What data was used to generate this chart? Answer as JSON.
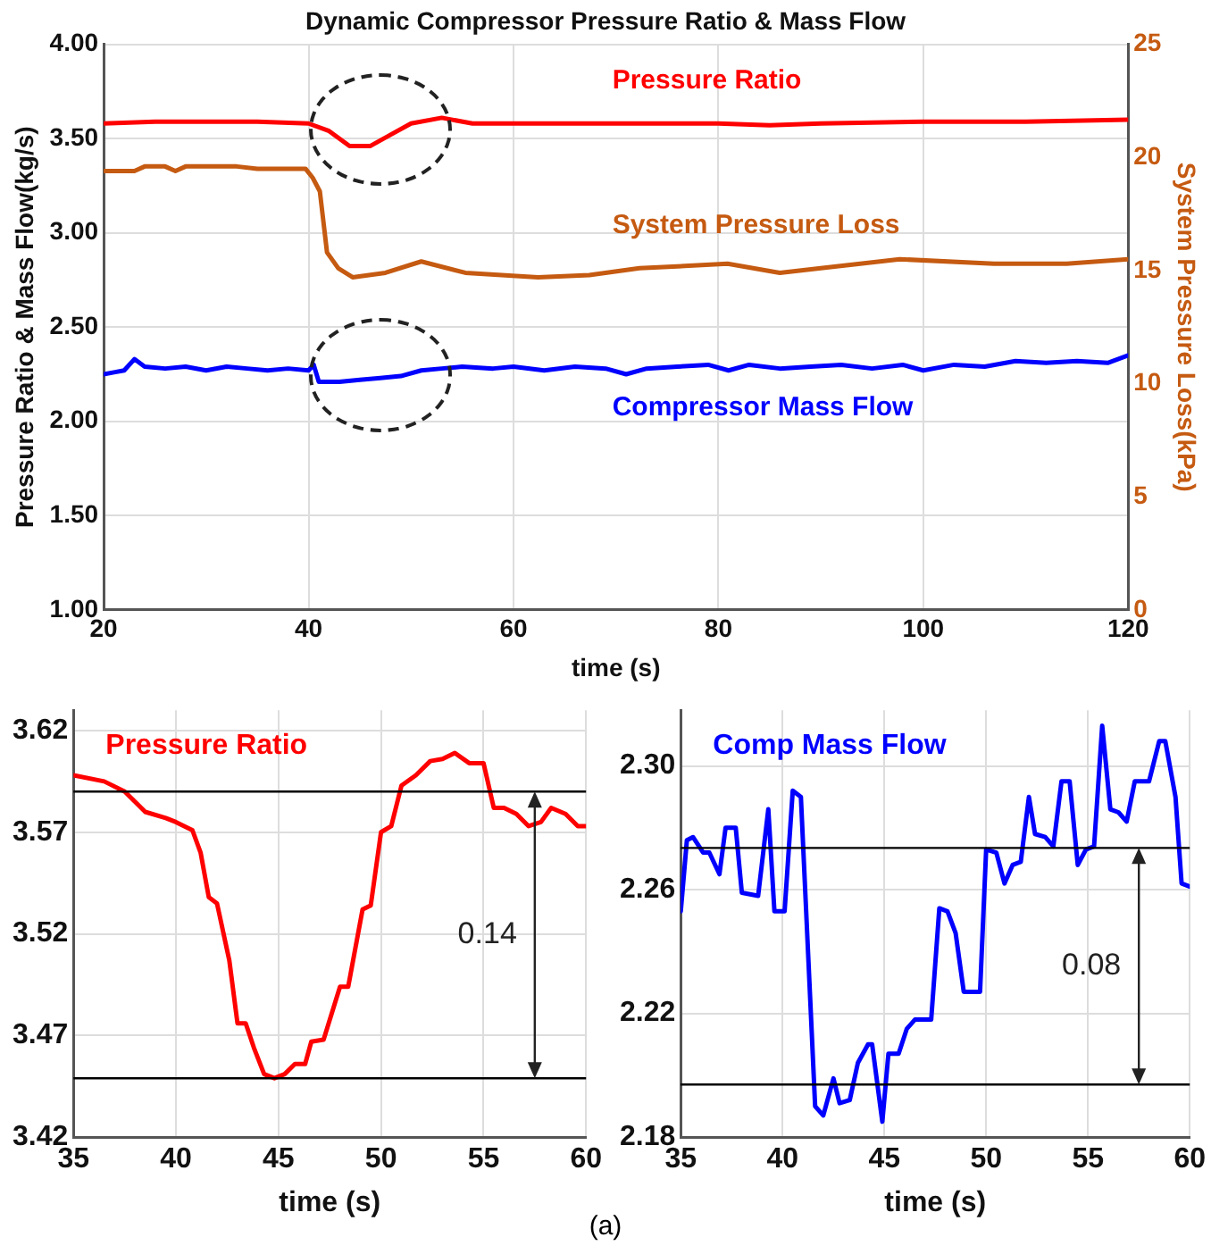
{
  "chart_data": [
    {
      "type": "line",
      "title": "Dynamic Compressor Pressure Ratio & Mass Flow",
      "xlabel": "time (s)",
      "ylabel": "Pressure Ratio & Mass Flow(kg/s)",
      "y2label": "System Pressure Loss(kPa)",
      "xlim": [
        20,
        120
      ],
      "xticks": [
        20,
        40,
        60,
        80,
        100,
        120
      ],
      "ylim": [
        1,
        4
      ],
      "yticks": [
        {
          "value": 1,
          "label": "1.00"
        },
        {
          "value": 1.5,
          "label": "1.50"
        },
        {
          "value": 2,
          "label": "2.00"
        },
        {
          "value": 2.5,
          "label": "2.50"
        },
        {
          "value": 3,
          "label": "3.00"
        },
        {
          "value": 3.5,
          "label": "3.50"
        },
        {
          "value": 4,
          "label": "4.00"
        }
      ],
      "y2lim": [
        0,
        25
      ],
      "y2ticks": [
        0,
        5,
        10,
        15,
        20,
        25
      ],
      "grid": true,
      "legend": false,
      "marker": "none",
      "line_style": "solid",
      "annotations": [
        "(a)"
      ],
      "series": [
        {
          "name": "Pressure Ratio",
          "color": "#ff0000",
          "x": [
            20,
            25,
            30,
            35,
            40,
            42,
            44,
            46,
            48,
            50,
            53,
            56,
            60,
            70,
            80,
            85,
            90,
            100,
            110,
            120
          ],
          "values": [
            3.58,
            3.59,
            3.59,
            3.59,
            3.58,
            3.54,
            3.46,
            3.46,
            3.52,
            3.58,
            3.61,
            3.58,
            3.58,
            3.58,
            3.58,
            3.57,
            3.58,
            3.59,
            3.59,
            3.6
          ]
        },
        {
          "name": "System Pressure Loss",
          "color": "#c55a11",
          "axis": "y2",
          "x": [
            20,
            23,
            24,
            26,
            27,
            28,
            33,
            35,
            39.7,
            40.4,
            41.1,
            41.8,
            42.9,
            44.3,
            47.5,
            51,
            55.3,
            62.4,
            67.4,
            72.3,
            80.9,
            86,
            90,
            97.7,
            106.9,
            114,
            120
          ],
          "values": [
            19.4,
            19.4,
            19.6,
            19.6,
            19.4,
            19.6,
            19.6,
            19.5,
            19.5,
            19.1,
            18.5,
            15.8,
            15.1,
            14.7,
            14.9,
            15.4,
            14.9,
            14.7,
            14.8,
            15.1,
            15.3,
            14.9,
            15.1,
            15.5,
            15.3,
            15.3,
            15.5
          ]
        },
        {
          "name": "Compressor Mass Flow",
          "color": "#0000ff",
          "x": [
            20,
            21,
            22,
            23,
            24,
            26,
            28,
            30,
            32,
            34,
            36,
            38,
            40,
            40.5,
            41,
            43,
            45,
            47,
            49,
            51,
            53,
            55,
            58,
            60,
            63,
            66,
            69,
            71,
            73,
            76,
            79,
            81,
            83,
            86,
            89,
            92,
            95,
            98,
            100,
            103,
            106,
            109,
            112,
            115,
            118,
            120
          ],
          "values": [
            2.25,
            2.26,
            2.27,
            2.33,
            2.29,
            2.28,
            2.29,
            2.27,
            2.29,
            2.28,
            2.27,
            2.28,
            2.27,
            2.3,
            2.21,
            2.21,
            2.22,
            2.23,
            2.24,
            2.27,
            2.28,
            2.29,
            2.28,
            2.29,
            2.27,
            2.29,
            2.28,
            2.25,
            2.28,
            2.29,
            2.3,
            2.27,
            2.3,
            2.28,
            2.29,
            2.3,
            2.28,
            2.3,
            2.27,
            2.3,
            2.29,
            2.32,
            2.31,
            2.32,
            2.31,
            2.35
          ]
        }
      ]
    },
    {
      "type": "line",
      "xlabel": "time (s)",
      "xlim": [
        35,
        60
      ],
      "xticks": [
        35,
        40,
        45,
        50,
        55,
        60
      ],
      "ylim": [
        3.42,
        3.63
      ],
      "yticks": [
        3.42,
        3.47,
        3.52,
        3.57,
        3.62
      ],
      "grid": true,
      "legend": false,
      "marker": "none",
      "line_style": "solid",
      "ref_lines": [
        {
          "axis": "y",
          "value": 3.59,
          "color": "#000000"
        },
        {
          "axis": "y",
          "value": 3.449,
          "color": "#000000"
        }
      ],
      "annotations": [
        "0.14"
      ],
      "series": [
        {
          "name": "Pressure Ratio",
          "color": "#ff0000",
          "x": [
            35,
            36.5,
            37.5,
            38.5,
            39.5,
            40,
            40.8,
            41.2,
            41.6,
            42,
            42.6,
            43,
            43.4,
            43.8,
            44.3,
            44.8,
            45.3,
            45.8,
            46.3,
            46.6,
            47.2,
            48,
            48.4,
            49.1,
            49.5,
            50,
            50.5,
            51,
            51.7,
            52.4,
            53,
            53.6,
            54.3,
            55,
            55.5,
            56,
            56.6,
            57.2,
            57.8,
            58.3,
            59,
            59.6,
            60
          ],
          "values": [
            3.598,
            3.595,
            3.59,
            3.58,
            3.577,
            3.575,
            3.571,
            3.56,
            3.538,
            3.535,
            3.507,
            3.476,
            3.476,
            3.464,
            3.451,
            3.449,
            3.451,
            3.456,
            3.456,
            3.467,
            3.468,
            3.494,
            3.494,
            3.532,
            3.534,
            3.57,
            3.573,
            3.593,
            3.598,
            3.605,
            3.606,
            3.609,
            3.604,
            3.604,
            3.582,
            3.582,
            3.579,
            3.573,
            3.575,
            3.582,
            3.579,
            3.573,
            3.573
          ]
        }
      ]
    },
    {
      "type": "line",
      "xlabel": "time (s)",
      "xlim": [
        35,
        60
      ],
      "xticks": [
        35,
        40,
        45,
        50,
        55,
        60
      ],
      "ylim": [
        2.18,
        2.318
      ],
      "yticks": [
        2.18,
        2.22,
        2.26,
        {
          "value": 2.3,
          "label": "2.30"
        }
      ],
      "grid": true,
      "legend": false,
      "marker": "none",
      "line_style": "solid",
      "ref_lines": [
        {
          "axis": "y",
          "value": 2.2735,
          "color": "#000000"
        },
        {
          "axis": "y",
          "value": 2.197,
          "color": "#000000"
        }
      ],
      "annotations": [
        "0.08"
      ],
      "series": [
        {
          "name": "Comp Mass Flow",
          "color": "#0000ff",
          "x": [
            35,
            35.3,
            35.6,
            36.1,
            36.4,
            36.9,
            37.2,
            37.7,
            38,
            38.8,
            39.3,
            39.6,
            40.1,
            40.5,
            40.9,
            41.6,
            42,
            42.5,
            42.8,
            43.3,
            43.7,
            44.2,
            44.4,
            44.9,
            45.2,
            45.7,
            46.1,
            46.5,
            47.3,
            47.7,
            48.1,
            48.5,
            48.9,
            49.7,
            50,
            50.5,
            50.9,
            51.3,
            51.7,
            52.1,
            52.4,
            52.9,
            53.3,
            53.7,
            54.1,
            54.5,
            54.9,
            55.3,
            55.7,
            56.1,
            56.5,
            56.9,
            57.3,
            58,
            58.5,
            58.8,
            59.3,
            59.6,
            60
          ],
          "values": [
            2.253,
            2.276,
            2.277,
            2.272,
            2.272,
            2.265,
            2.28,
            2.28,
            2.259,
            2.258,
            2.286,
            2.253,
            2.253,
            2.292,
            2.29,
            2.19,
            2.187,
            2.199,
            2.191,
            2.192,
            2.204,
            2.21,
            2.21,
            2.185,
            2.207,
            2.207,
            2.215,
            2.218,
            2.218,
            2.254,
            2.253,
            2.246,
            2.227,
            2.227,
            2.273,
            2.272,
            2.262,
            2.268,
            2.269,
            2.29,
            2.278,
            2.277,
            2.274,
            2.295,
            2.295,
            2.268,
            2.273,
            2.274,
            2.313,
            2.286,
            2.285,
            2.282,
            2.295,
            2.295,
            2.308,
            2.308,
            2.29,
            2.262,
            2.261
          ]
        }
      ]
    }
  ]
}
